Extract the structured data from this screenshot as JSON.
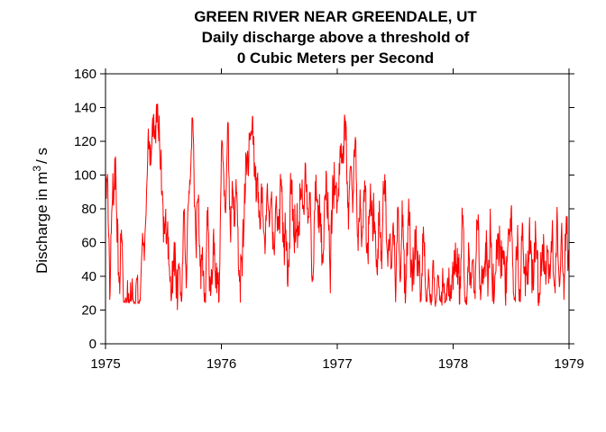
{
  "chart_data": {
    "type": "line",
    "title": [
      "GREEN RIVER NEAR GREENDALE, UT",
      "Daily discharge above a threshold of",
      "0 Cubic Meters per Second"
    ],
    "ylabel_prefix": "Discharge in m",
    "ylabel_superscript": "3",
    "ylabel_suffix": "/ s",
    "xlabel": "",
    "xlim": [
      1975,
      1979
    ],
    "ylim": [
      0,
      160
    ],
    "x_ticks": [
      "1975",
      "1976",
      "1977",
      "1978",
      "1979"
    ],
    "y_ticks": [
      "0",
      "20",
      "40",
      "60",
      "80",
      "100",
      "120",
      "140",
      "160"
    ],
    "grid": false,
    "series": [
      {
        "color": "#ff0000",
        "x": [
          1975.0,
          1975.02,
          1975.04,
          1975.06,
          1975.08,
          1975.1,
          1975.12,
          1975.14,
          1975.16,
          1975.18,
          1975.2,
          1975.22,
          1975.24,
          1975.26,
          1975.28,
          1975.3,
          1975.33,
          1975.36,
          1975.38,
          1975.4,
          1975.42,
          1975.44,
          1975.46,
          1975.48,
          1975.5,
          1975.52,
          1975.54,
          1975.56,
          1975.58,
          1975.6,
          1975.62,
          1975.64,
          1975.66,
          1975.68,
          1975.7,
          1975.72,
          1975.74,
          1975.76,
          1975.78,
          1975.8,
          1975.82,
          1975.84,
          1975.86,
          1975.88,
          1975.9,
          1975.92,
          1975.94,
          1975.96,
          1975.98,
          1976.0,
          1976.02,
          1976.04,
          1976.06,
          1976.08,
          1976.1,
          1976.12,
          1976.14,
          1976.16,
          1976.18,
          1976.2,
          1976.22,
          1976.24,
          1976.26,
          1976.28,
          1976.3,
          1976.32,
          1976.34,
          1976.36,
          1976.38,
          1976.4,
          1976.42,
          1976.44,
          1976.46,
          1976.48,
          1976.5,
          1976.52,
          1976.54,
          1976.56,
          1976.58,
          1976.6,
          1976.62,
          1976.64,
          1976.66,
          1976.68,
          1976.7,
          1976.72,
          1976.74,
          1976.76,
          1976.78,
          1976.8,
          1976.82,
          1976.84,
          1976.86,
          1976.88,
          1976.9,
          1976.92,
          1976.94,
          1976.96,
          1976.98,
          1977.0,
          1977.02,
          1977.04,
          1977.06,
          1977.08,
          1977.1,
          1977.12,
          1977.14,
          1977.16,
          1977.18,
          1977.2,
          1977.22,
          1977.24,
          1977.26,
          1977.28,
          1977.3,
          1977.32,
          1977.34,
          1977.36,
          1977.38,
          1977.4,
          1977.42,
          1977.44,
          1977.46,
          1977.48,
          1977.5,
          1977.52,
          1977.54,
          1977.56,
          1977.58,
          1977.6,
          1977.62,
          1977.64,
          1977.66,
          1977.68,
          1977.7,
          1977.72,
          1977.74,
          1977.76,
          1977.78,
          1977.8,
          1977.82,
          1977.84,
          1977.86,
          1977.88,
          1977.9,
          1977.92,
          1977.94,
          1977.96,
          1977.98,
          1978.0,
          1978.02,
          1978.04,
          1978.06,
          1978.08,
          1978.1,
          1978.12,
          1978.14,
          1978.16,
          1978.18,
          1978.2,
          1978.22,
          1978.24,
          1978.26,
          1978.28,
          1978.3,
          1978.32,
          1978.34,
          1978.36,
          1978.38,
          1978.4,
          1978.42,
          1978.44,
          1978.46,
          1978.48,
          1978.5,
          1978.52,
          1978.54,
          1978.56,
          1978.58,
          1978.6,
          1978.62,
          1978.64,
          1978.66,
          1978.68,
          1978.7,
          1978.72,
          1978.74,
          1978.76,
          1978.78,
          1978.8,
          1978.82,
          1978.84,
          1978.86,
          1978.88,
          1978.9,
          1978.92,
          1978.94,
          1978.96,
          1978.98,
          1979.0
        ],
        "y": [
          80,
          95,
          30,
          85,
          110,
          60,
          40,
          62,
          25,
          24,
          30,
          25,
          26,
          25,
          24,
          26,
          60,
          100,
          120,
          118,
          122,
          142,
          120,
          115,
          60,
          80,
          50,
          40,
          30,
          60,
          20,
          45,
          30,
          80,
          40,
          90,
          115,
          118,
          60,
          85,
          50,
          40,
          30,
          70,
          40,
          35,
          60,
          30,
          25,
          115,
          100,
          85,
          130,
          60,
          90,
          85,
          70,
          40,
          40,
          95,
          100,
          125,
          124,
          123,
          84,
          90,
          80,
          75,
          60,
          85,
          80,
          70,
          60,
          75,
          80,
          90,
          65,
          55,
          50,
          90,
          80,
          60,
          70,
          85,
          80,
          95,
          80,
          90,
          40,
          70,
          88,
          82,
          60,
          55,
          85,
          90,
          30,
          100,
          88,
          85,
          100,
          110,
          130,
          110,
          80,
          105,
          90,
          120,
          55,
          80,
          70,
          90,
          60,
          75,
          85,
          65,
          50,
          70,
          55,
          90,
          80,
          55,
          50,
          70,
          35,
          80,
          40,
          85,
          30,
          60,
          70,
          50,
          35,
          70,
          40,
          30,
          60,
          35,
          33,
          27,
          35,
          30,
          29,
          34,
          31,
          30,
          30,
          28,
          35,
          32,
          60,
          35,
          40,
          75,
          28,
          30,
          50,
          40,
          30,
          55,
          70,
          30,
          35,
          60,
          28,
          80,
          25,
          40,
          50,
          70,
          40,
          55,
          30,
          65,
          80,
          30,
          40,
          55,
          25,
          70,
          45,
          35,
          75,
          30,
          60,
          50,
          30,
          40,
          65,
          35,
          55,
          45,
          60,
          30,
          72,
          35,
          60,
          40,
          65,
          55
        ]
      }
    ]
  }
}
